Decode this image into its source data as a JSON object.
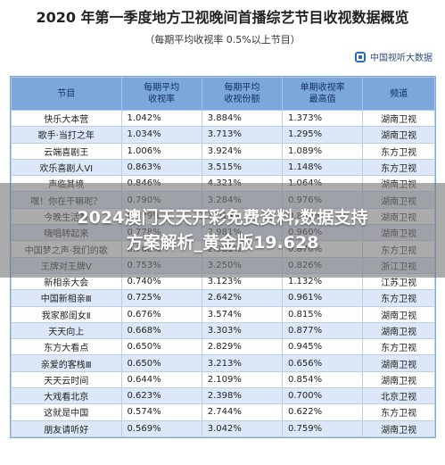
{
  "title": "2020 年第一季度地方卫视晚间首播综艺节目收视数据概览",
  "subtitle": "（每期平均收视率 0.5%以上节目）",
  "brand": "中国视听大数据",
  "table": {
    "headers": [
      "节目",
      "每期平均\n收视率",
      "每期平均\n收视份额",
      "单期收视率\n最高值",
      "频道"
    ],
    "rows": [
      [
        "快乐大本营",
        "1.042%",
        "3.884%",
        "1.373%",
        "湖南卫视"
      ],
      [
        "歌手·当打之年",
        "1.034%",
        "3.713%",
        "1.295%",
        "湖南卫视"
      ],
      [
        "云端喜剧王",
        "1.006%",
        "3.924%",
        "1.089%",
        "东方卫视"
      ],
      [
        "欢乐喜剧人VI",
        "0.863%",
        "3.515%",
        "1.148%",
        "东方卫视"
      ],
      [
        "声临其境",
        "0.846%",
        "4.321%",
        "1.064%",
        "湖南卫视"
      ],
      [
        "嘿！你在干嘛呢？",
        "0.790%",
        "3.284%",
        "0.976%",
        "湖南卫视"
      ],
      [
        "今晚生活秀",
        "0.779%",
        "3.019%",
        "0.862%",
        "湖南卫视"
      ],
      [
        "嗨唱转起来",
        "0.778%",
        "2.981%",
        "0.960%",
        "湖南卫视"
      ],
      [
        "中国梦之声·我们的歌",
        "0.760%",
        "2.981%",
        "0.870%",
        "东方卫视"
      ],
      [
        "王牌对王牌Ⅴ",
        "0.753%",
        "3.250%",
        "0.826%",
        "浙江卫视"
      ],
      [
        "新相亲大会",
        "0.740%",
        "3.123%",
        "1.132%",
        "江苏卫视"
      ],
      [
        "中国新相亲Ⅲ",
        "0.725%",
        "2.642%",
        "0.961%",
        "东方卫视"
      ],
      [
        "我家那闺女Ⅱ",
        "0.676%",
        "3.574%",
        "0.815%",
        "湖南卫视"
      ],
      [
        "天天向上",
        "0.668%",
        "3.303%",
        "0.877%",
        "湖南卫视"
      ],
      [
        "东方大看点",
        "0.650%",
        "2.829%",
        "0.945%",
        "东方卫视"
      ],
      [
        "亲爱的客栈Ⅲ",
        "0.650%",
        "3.213%",
        "0.656%",
        "湖南卫视"
      ],
      [
        "天天云时间",
        "0.644%",
        "2.109%",
        "0.854%",
        "湖南卫视"
      ],
      [
        "大戏看北京",
        "0.623%",
        "2.398%",
        "0.700%",
        "北京卫视"
      ],
      [
        "这就是中国",
        "0.574%",
        "2.744%",
        "0.622%",
        "东方卫视"
      ],
      [
        "朋友请听好",
        "0.569%",
        "3.042%",
        "0.759%",
        "湖南卫视"
      ]
    ]
  },
  "banner": {
    "line1": "2024澳门天天开彩免费资料,数据支持",
    "line2": "方案解析_黄金版19.628"
  }
}
